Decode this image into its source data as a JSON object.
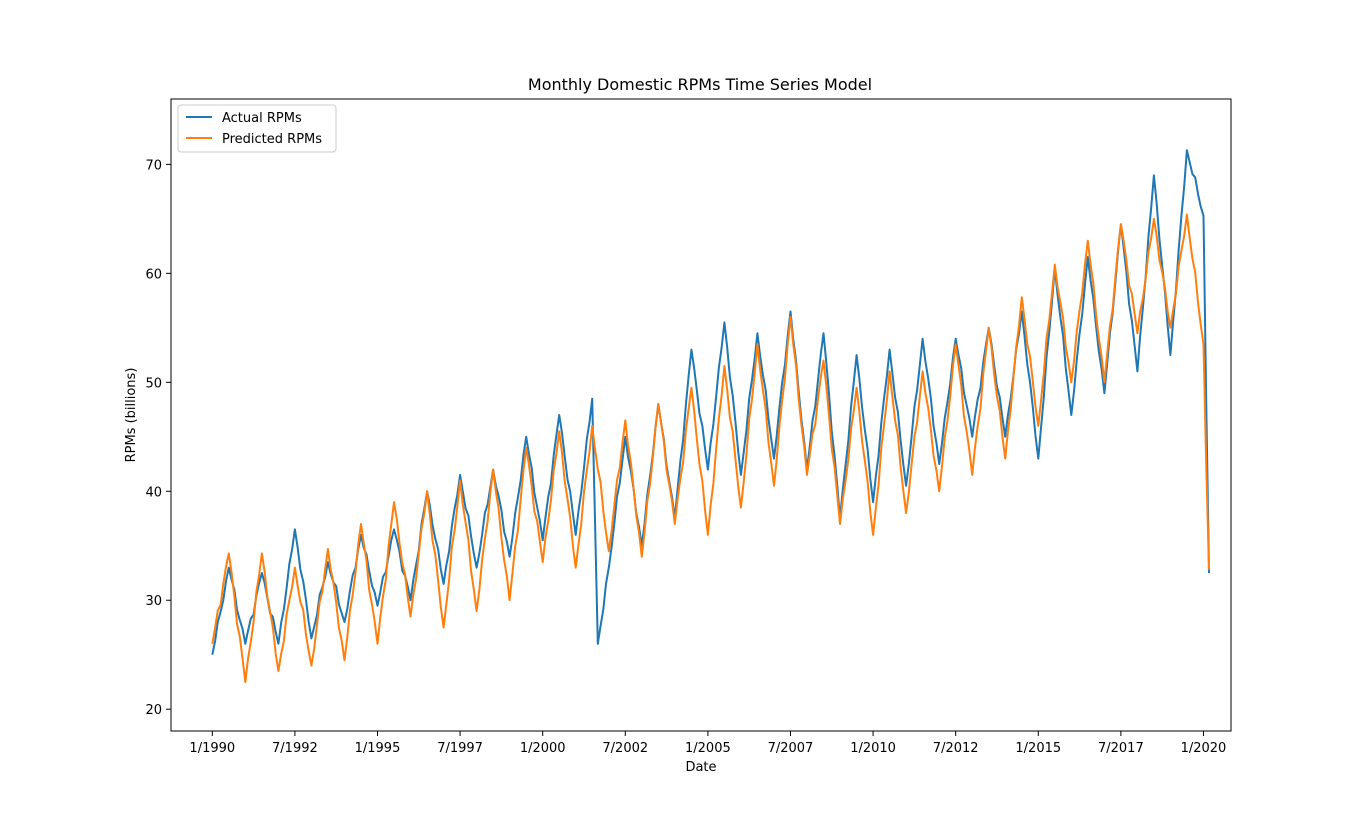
{
  "chart_data": {
    "type": "line",
    "title": "Monthly Domestic RPMs Time Series Model",
    "xlabel": "Date",
    "ylabel": "RPMs (billions)",
    "ylim": [
      18,
      76
    ],
    "xlim": [
      "1988-10",
      "2020-11"
    ],
    "y_ticks": [
      20,
      30,
      40,
      50,
      60,
      70
    ],
    "x_ticks": [
      {
        "date": "1990-01",
        "label": "1/1990"
      },
      {
        "date": "1992-07",
        "label": "7/1992"
      },
      {
        "date": "1995-01",
        "label": "1/1995"
      },
      {
        "date": "1997-07",
        "label": "7/1997"
      },
      {
        "date": "2000-01",
        "label": "1/2000"
      },
      {
        "date": "2002-07",
        "label": "7/2002"
      },
      {
        "date": "2005-01",
        "label": "1/2005"
      },
      {
        "date": "2007-07",
        "label": "7/2007"
      },
      {
        "date": "2010-01",
        "label": "1/2010"
      },
      {
        "date": "2012-07",
        "label": "7/2012"
      },
      {
        "date": "2015-01",
        "label": "1/2015"
      },
      {
        "date": "2017-07",
        "label": "7/2017"
      },
      {
        "date": "2020-01",
        "label": "1/2020"
      }
    ],
    "grid": false,
    "legend_position": "top-left",
    "series": [
      {
        "name": "Actual RPMs",
        "color": "#1f77b4",
        "x": [
          "1990-01",
          "1990-07",
          "1991-01",
          "1991-07",
          "1992-01",
          "1992-07",
          "1993-01",
          "1993-07",
          "1994-01",
          "1994-07",
          "1995-01",
          "1995-07",
          "1996-01",
          "1996-07",
          "1997-01",
          "1997-07",
          "1998-01",
          "1998-07",
          "1999-01",
          "1999-07",
          "2000-01",
          "2000-07",
          "2001-01",
          "2001-07",
          "2001-09",
          "2002-01",
          "2002-07",
          "2003-01",
          "2003-07",
          "2004-01",
          "2004-07",
          "2005-01",
          "2005-07",
          "2006-01",
          "2006-07",
          "2007-01",
          "2007-07",
          "2008-01",
          "2008-07",
          "2009-01",
          "2009-07",
          "2010-01",
          "2010-07",
          "2011-01",
          "2011-07",
          "2012-01",
          "2012-07",
          "2013-01",
          "2013-07",
          "2014-01",
          "2014-07",
          "2015-01",
          "2015-07",
          "2016-01",
          "2016-07",
          "2017-01",
          "2017-07",
          "2018-01",
          "2018-07",
          "2019-01",
          "2019-07",
          "2020-01",
          "2020-03"
        ],
        "y": [
          25,
          33,
          26,
          32.5,
          26,
          36.5,
          26.5,
          33.5,
          28,
          36,
          29.5,
          36.5,
          30,
          40,
          31.5,
          41.5,
          33,
          42,
          34,
          45,
          35.5,
          47,
          36,
          48.5,
          26,
          33,
          45,
          35,
          48,
          37.5,
          53,
          42,
          55.5,
          41.5,
          54.5,
          43,
          56.5,
          42,
          54.5,
          37.5,
          52.5,
          39,
          53,
          40.5,
          54,
          42.5,
          54,
          45,
          55,
          45,
          56.5,
          43,
          60.5,
          47,
          61.5,
          49,
          64.5,
          51,
          69,
          52.5,
          71.3,
          65.3,
          32.5
        ]
      },
      {
        "name": "Predicted RPMs",
        "color": "#ff7f0e",
        "x": [
          "1990-01",
          "1990-07",
          "1991-01",
          "1991-07",
          "1992-01",
          "1992-07",
          "1993-01",
          "1993-07",
          "1994-01",
          "1994-07",
          "1995-01",
          "1995-07",
          "1996-01",
          "1996-07",
          "1997-01",
          "1997-07",
          "1998-01",
          "1998-07",
          "1999-01",
          "1999-07",
          "2000-01",
          "2000-07",
          "2001-01",
          "2001-07",
          "2002-01",
          "2002-07",
          "2003-01",
          "2003-07",
          "2004-01",
          "2004-07",
          "2005-01",
          "2005-07",
          "2006-01",
          "2006-07",
          "2007-01",
          "2007-07",
          "2008-01",
          "2008-07",
          "2009-01",
          "2009-07",
          "2010-01",
          "2010-07",
          "2011-01",
          "2011-07",
          "2012-01",
          "2012-07",
          "2013-01",
          "2013-07",
          "2014-01",
          "2014-07",
          "2015-01",
          "2015-07",
          "2016-01",
          "2016-07",
          "2017-01",
          "2017-07",
          "2018-01",
          "2018-07",
          "2019-01",
          "2019-07",
          "2020-01",
          "2020-03"
        ],
        "y": [
          26,
          34.3,
          22.5,
          34.3,
          23.5,
          33,
          24,
          34.7,
          24.5,
          37,
          26,
          39,
          28.5,
          40,
          27.5,
          41,
          29,
          42,
          30,
          44,
          33.5,
          45.5,
          33,
          46,
          34.5,
          46.5,
          34,
          48,
          37,
          49.5,
          36,
          51.5,
          38.5,
          53.5,
          40.5,
          56,
          41.5,
          52,
          37,
          49.5,
          36,
          51,
          38,
          51,
          40,
          53.5,
          41.5,
          55,
          43,
          57.8,
          46,
          60.8,
          50,
          63,
          50,
          64.5,
          54.5,
          65,
          55,
          65.4,
          53.5,
          32.8
        ]
      }
    ]
  }
}
